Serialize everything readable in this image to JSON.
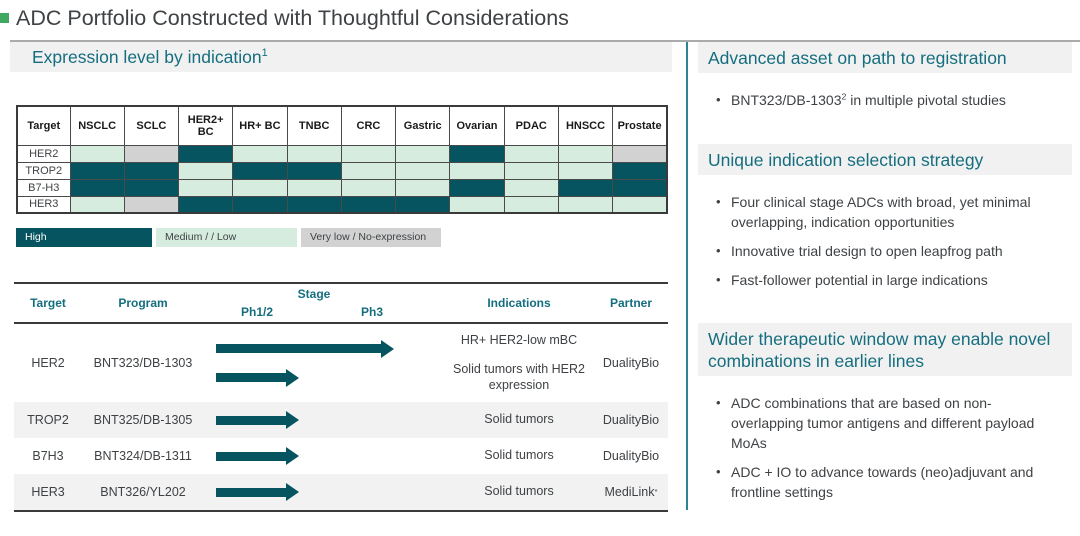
{
  "colors": {
    "high": "#05545F",
    "medium": "#D6ECDF",
    "very_low": "#D2D2D2",
    "teal_text": "#156E7F",
    "body_text": "#3F4245",
    "band_bg": "#F1F1F1",
    "divider": "#2F8494",
    "title_square": "#41A862",
    "row_stripe": "#F2F2F2"
  },
  "title": "ADC Portfolio Constructed with Thoughtful Considerations",
  "left": {
    "section_title": "Expression level by indication",
    "section_title_sup": "1",
    "expression_table": {
      "columns": [
        "Target",
        "NSCLC",
        "SCLC",
        "HER2+ BC",
        "HR+ BC",
        "TNBC",
        "CRC",
        "Gastric",
        "Ovarian",
        "PDAC",
        "HNSCC",
        "Prostate"
      ],
      "rows": [
        {
          "target": "HER2",
          "levels": [
            "medium",
            "very_low",
            "high",
            "medium",
            "medium",
            "medium",
            "medium",
            "high",
            "medium",
            "medium",
            "very_low"
          ]
        },
        {
          "target": "TROP2",
          "levels": [
            "high",
            "high",
            "medium",
            "high",
            "high",
            "medium",
            "medium",
            "medium",
            "medium",
            "medium",
            "high"
          ]
        },
        {
          "target": "B7-H3",
          "levels": [
            "high",
            "high",
            "medium",
            "medium",
            "medium",
            "medium",
            "medium",
            "high",
            "medium",
            "high",
            "high"
          ]
        },
        {
          "target": "HER3",
          "levels": [
            "medium",
            "very_low",
            "high",
            "high",
            "high",
            "high",
            "high",
            "medium",
            "medium",
            "medium",
            "medium"
          ]
        }
      ]
    },
    "legend": [
      {
        "label": "High",
        "level": "high"
      },
      {
        "label": "Medium / / Low",
        "level": "medium"
      },
      {
        "label": "Very low / No-expression",
        "level": "very_low"
      }
    ],
    "pipeline": {
      "headers": {
        "target": "Target",
        "program": "Program",
        "stage": "Stage",
        "ph12": "Ph1/2",
        "ph3": "Ph3",
        "indications": "Indications",
        "partner": "Partner"
      },
      "rows": [
        {
          "target": "HER2",
          "program": "BNT323/DB-1303",
          "entries": [
            {
              "arrow": "long",
              "indication": "HR+ HER2-low mBC"
            },
            {
              "arrow": "short",
              "indication": "Solid tumors with HER2 expression"
            }
          ],
          "partner": "DualityBio",
          "partner_sup": ""
        },
        {
          "target": "TROP2",
          "program": "BNT325/DB-1305",
          "entries": [
            {
              "arrow": "short",
              "indication": "Solid tumors"
            }
          ],
          "partner": "DualityBio",
          "partner_sup": ""
        },
        {
          "target": "B7H3",
          "program": "BNT324/DB-1311",
          "entries": [
            {
              "arrow": "short",
              "indication": "Solid tumors"
            }
          ],
          "partner": "DualityBio",
          "partner_sup": ""
        },
        {
          "target": "HER3",
          "program": "BNT326/YL202",
          "entries": [
            {
              "arrow": "short",
              "indication": "Solid tumors"
            }
          ],
          "partner": "MediLink",
          "partner_sup": "*"
        }
      ]
    }
  },
  "right": {
    "sections": [
      {
        "heading": "Advanced asset on path to registration",
        "bullets": [
          [
            {
              "t": "BNT323/DB-1303"
            },
            {
              "s": "2"
            },
            {
              "t": " in multiple pivotal studies"
            }
          ]
        ]
      },
      {
        "heading": "Unique indication selection strategy",
        "bullets": [
          [
            {
              "t": "Four clinical stage ADCs with broad, yet minimal overlapping, indication opportunities"
            }
          ],
          [
            {
              "t": "Innovative trial design to open leapfrog path"
            }
          ],
          [
            {
              "t": "Fast-follower potential in large indications"
            }
          ]
        ]
      },
      {
        "heading": "Wider therapeutic window may enable novel combinations in earlier lines",
        "bullets": [
          [
            {
              "t": "ADC combinations that are based on non-overlapping tumor antigens and different payload MoAs"
            }
          ],
          [
            {
              "t": "ADC + IO to advance towards (neo)adjuvant and frontline settings"
            }
          ]
        ]
      }
    ]
  }
}
